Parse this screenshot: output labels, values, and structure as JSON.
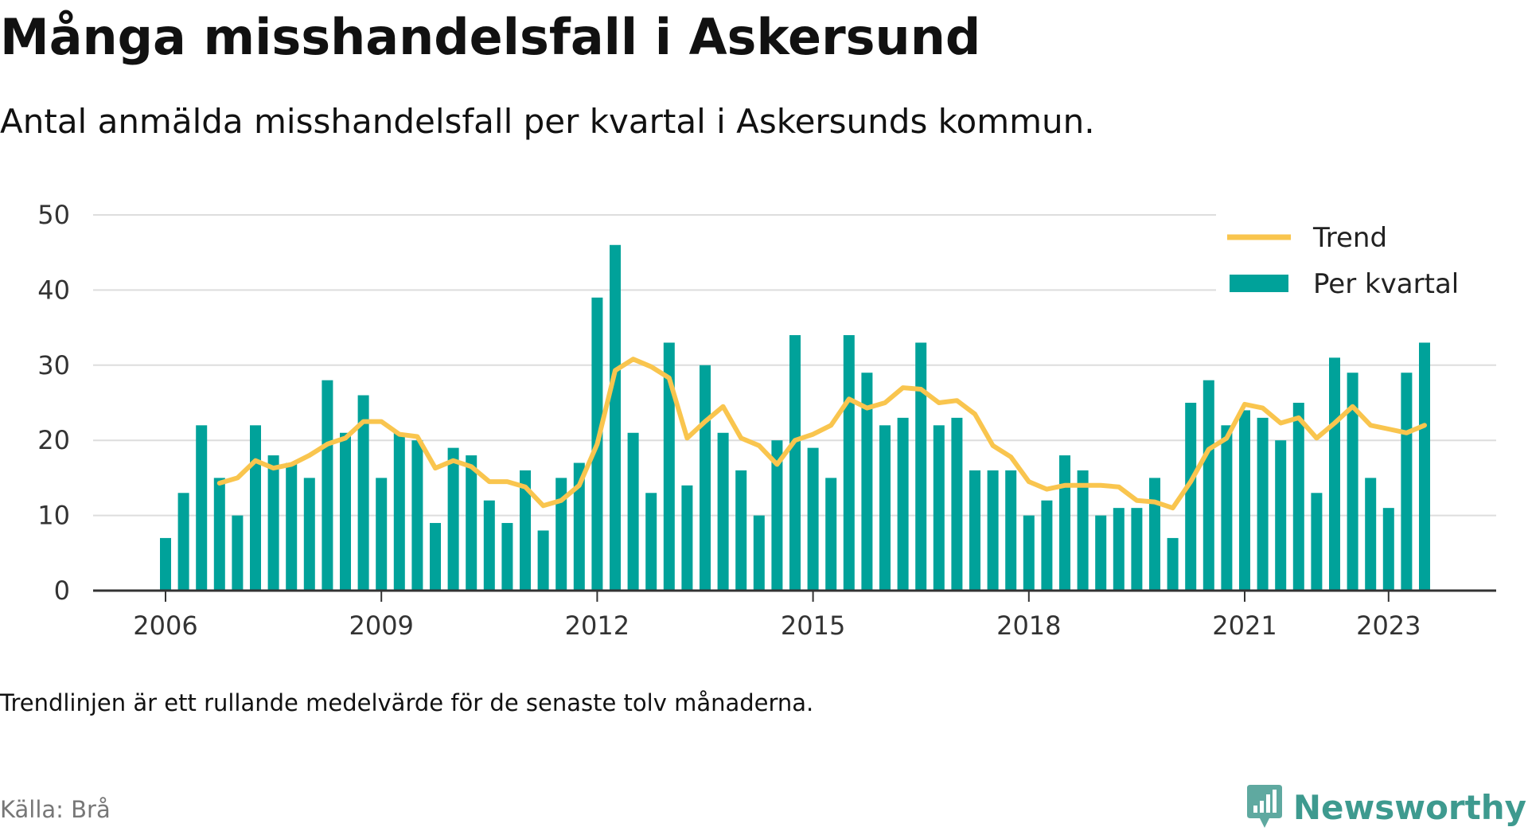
{
  "title": "Många misshandelsfall i Askersund",
  "subtitle": "Antal anmälda misshandelsfall per kvartal i Askersunds kommun.",
  "note": "Trendlinjen är ett rullande medelvärde för de senaste tolv månaderna.",
  "source": "Källa: Brå",
  "brand": {
    "name": "Newsworthy",
    "icon": "newsworthy-logo-icon",
    "color": "#3e9a8f"
  },
  "colors": {
    "bars": "#00a29a",
    "trend": "#f9c54e",
    "grid": "#dddddd",
    "axis": "#333333"
  },
  "chart_data": {
    "type": "bar",
    "y_ticks": [
      0,
      10,
      20,
      30,
      40,
      50
    ],
    "ylim": [
      0,
      50
    ],
    "x_ticks": [
      "2006",
      "2009",
      "2012",
      "2015",
      "2018",
      "2021",
      "2023"
    ],
    "grid": true,
    "legend_position": "top-right",
    "series": [
      {
        "name": "Per kvartal",
        "kind": "bar",
        "start_period": "2006 Q1",
        "values": [
          7,
          13,
          22,
          15,
          10,
          22,
          18,
          17,
          15,
          28,
          21,
          26,
          15,
          21,
          20,
          9,
          19,
          18,
          12,
          9,
          16,
          8,
          15,
          17,
          39,
          46,
          21,
          13,
          33,
          14,
          30,
          21,
          16,
          10,
          20,
          34,
          19,
          15,
          34,
          29,
          22,
          23,
          33,
          22,
          23,
          16,
          16,
          16,
          10,
          12,
          18,
          16,
          10,
          11,
          11,
          15,
          7,
          25,
          28,
          22,
          24,
          23,
          20,
          25,
          13,
          31,
          29,
          15,
          11,
          29,
          33
        ]
      },
      {
        "name": "Trend",
        "kind": "line",
        "start_period": "2006 Q4",
        "values": [
          14.3,
          15.0,
          17.3,
          16.3,
          16.8,
          18.0,
          19.5,
          20.3,
          22.5,
          22.5,
          20.8,
          20.5,
          16.3,
          17.3,
          16.5,
          14.5,
          14.5,
          13.8,
          11.3,
          12.0,
          14.0,
          19.5,
          29.3,
          30.8,
          29.8,
          28.3,
          20.3,
          22.5,
          24.5,
          20.3,
          19.3,
          16.8,
          20.0,
          20.8,
          22.0,
          25.5,
          24.3,
          25.0,
          27.0,
          26.8,
          25.0,
          25.3,
          23.5,
          19.3,
          17.8,
          14.5,
          13.5,
          14.0,
          14.0,
          14.0,
          13.8,
          12.0,
          11.8,
          11.0,
          14.5,
          18.8,
          20.3,
          24.8,
          24.3,
          22.3,
          23.0,
          20.3,
          22.3,
          24.5,
          22.0,
          21.5,
          21.0,
          22.0
        ]
      }
    ]
  }
}
